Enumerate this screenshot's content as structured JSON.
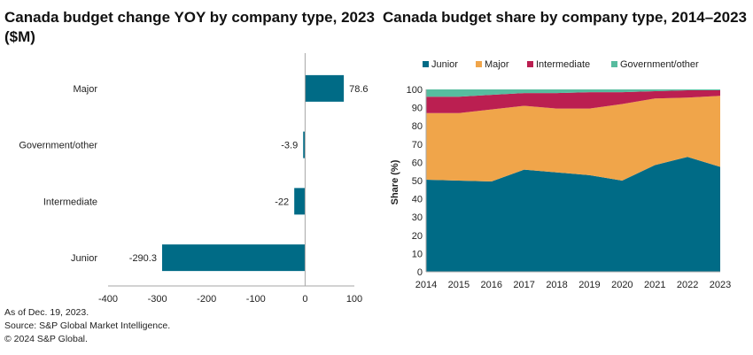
{
  "chart_data": [
    {
      "type": "bar",
      "orientation": "horizontal",
      "title": "Canada budget change YOY by company type, 2023 ($M)",
      "categories": [
        "Major",
        "Government/other",
        "Intermediate",
        "Junior"
      ],
      "values": [
        78.6,
        -3.9,
        -22,
        -290.3
      ],
      "value_labels": [
        "78.6",
        "-3.9",
        "-22",
        "-290.3"
      ],
      "xlabel": "",
      "ylabel": "",
      "xlim": [
        -400,
        100
      ],
      "xticks": [
        "-400",
        "-300",
        "-200",
        "-100",
        "0",
        "100"
      ],
      "bar_color": "#006B86",
      "grid": false
    },
    {
      "type": "area",
      "stacked": true,
      "title": "Canada budget share by company type, 2014–2023",
      "x": [
        "2014",
        "2015",
        "2016",
        "2017",
        "2018",
        "2019",
        "2020",
        "2021",
        "2022",
        "2023"
      ],
      "series": [
        {
          "name": "Junior",
          "color": "#006B86",
          "values": [
            50.5,
            50,
            49.5,
            56,
            54.5,
            53,
            50,
            58.5,
            63,
            57.5
          ]
        },
        {
          "name": "Major",
          "color": "#F0A54A",
          "values": [
            36.5,
            37,
            39.5,
            35,
            35,
            36.5,
            42,
            36.5,
            32.5,
            39
          ]
        },
        {
          "name": "Intermediate",
          "color": "#BB1F51",
          "values": [
            9,
            9,
            8,
            7,
            8.5,
            9,
            6.5,
            4,
            4,
            3
          ]
        },
        {
          "name": "Government/other",
          "color": "#57BC9F",
          "values": [
            4,
            4,
            3,
            2,
            2,
            1.5,
            1.5,
            1,
            0.5,
            0.5
          ]
        }
      ],
      "ylabel": "Share (%)",
      "xlabel": "",
      "ylim": [
        0,
        100
      ],
      "yticks": [
        "0",
        "10",
        "20",
        "30",
        "40",
        "50",
        "60",
        "70",
        "80",
        "90",
        "100"
      ],
      "legend": "top",
      "grid": false
    }
  ],
  "footer": {
    "line1": "As of Dec. 19, 2023.",
    "line2": "Source: S&P Global Market Intelligence.",
    "line3": "© 2024 S&P Global."
  },
  "colors": {
    "axis": "#A6A6A6"
  }
}
